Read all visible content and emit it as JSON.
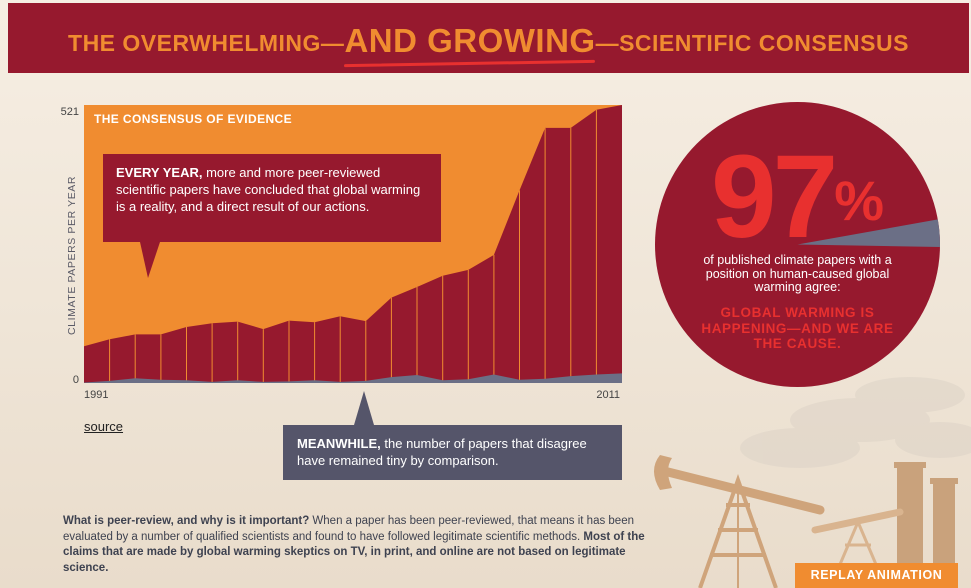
{
  "header": {
    "title_left": "THE OVERWHELMING—",
    "title_highlight": "AND GROWING",
    "title_right": "—SCIENTIFIC CONSENSUS"
  },
  "colors": {
    "crimson": "#96192e",
    "orange": "#f08c30",
    "red": "#e8302f",
    "slate": "#55556a",
    "disagree": "#6b6f86"
  },
  "chart_data": {
    "type": "area",
    "title": "THE CONSENSUS OF EVIDENCE",
    "ylabel": "CLIMATE PAPERS PER YEAR",
    "ylim": [
      0,
      521
    ],
    "yticks": [
      "0",
      "521"
    ],
    "x": [
      1991,
      1992,
      1993,
      1994,
      1995,
      1996,
      1997,
      1998,
      1999,
      2000,
      2001,
      2002,
      2003,
      2004,
      2005,
      2006,
      2007,
      2008,
      2009,
      2010,
      2011,
      2012
    ],
    "xticks": [
      "1991",
      "2011"
    ],
    "series": [
      {
        "values": [
          69,
          82,
          91,
          91,
          105,
          112,
          115,
          101,
          117,
          114,
          125,
          116,
          160,
          180,
          201,
          212,
          240,
          361,
          478,
          478,
          512,
          521
        ]
      },
      {
        "values": [
          1,
          4,
          9,
          6,
          5,
          2,
          5,
          2,
          3,
          5,
          2,
          4,
          11,
          15,
          5,
          7,
          16,
          6,
          8,
          13,
          16,
          18
        ]
      }
    ]
  },
  "callout_top": {
    "lead": "EVERY YEAR,",
    "text": " more and more peer-reviewed scientific papers have concluded that global warming is a reality, and a direct result of our actions."
  },
  "callout_bottom": {
    "lead": "MEANWHILE,",
    "text": " the number of papers that disagree have remained tiny by comparison."
  },
  "source_link": "source",
  "stat": {
    "value": "97",
    "unit": "%",
    "description": "of published climate papers with a position on human-caused global warming agree:",
    "claim": "GLOBAL WARMING IS HAPPENING—AND WE ARE THE CAUSE."
  },
  "explain": {
    "q": "What is peer-review, and why is it important?",
    "a": " When a paper has been peer-reviewed, that means it has been evaluated by a number of qualified scientists and found to have followed legitimate scientific methods. ",
    "b": "Most of the claims that are made by global warming skeptics on TV, in print, and online are not based on legitimate science."
  },
  "replay_button": "REPLAY ANIMATION"
}
